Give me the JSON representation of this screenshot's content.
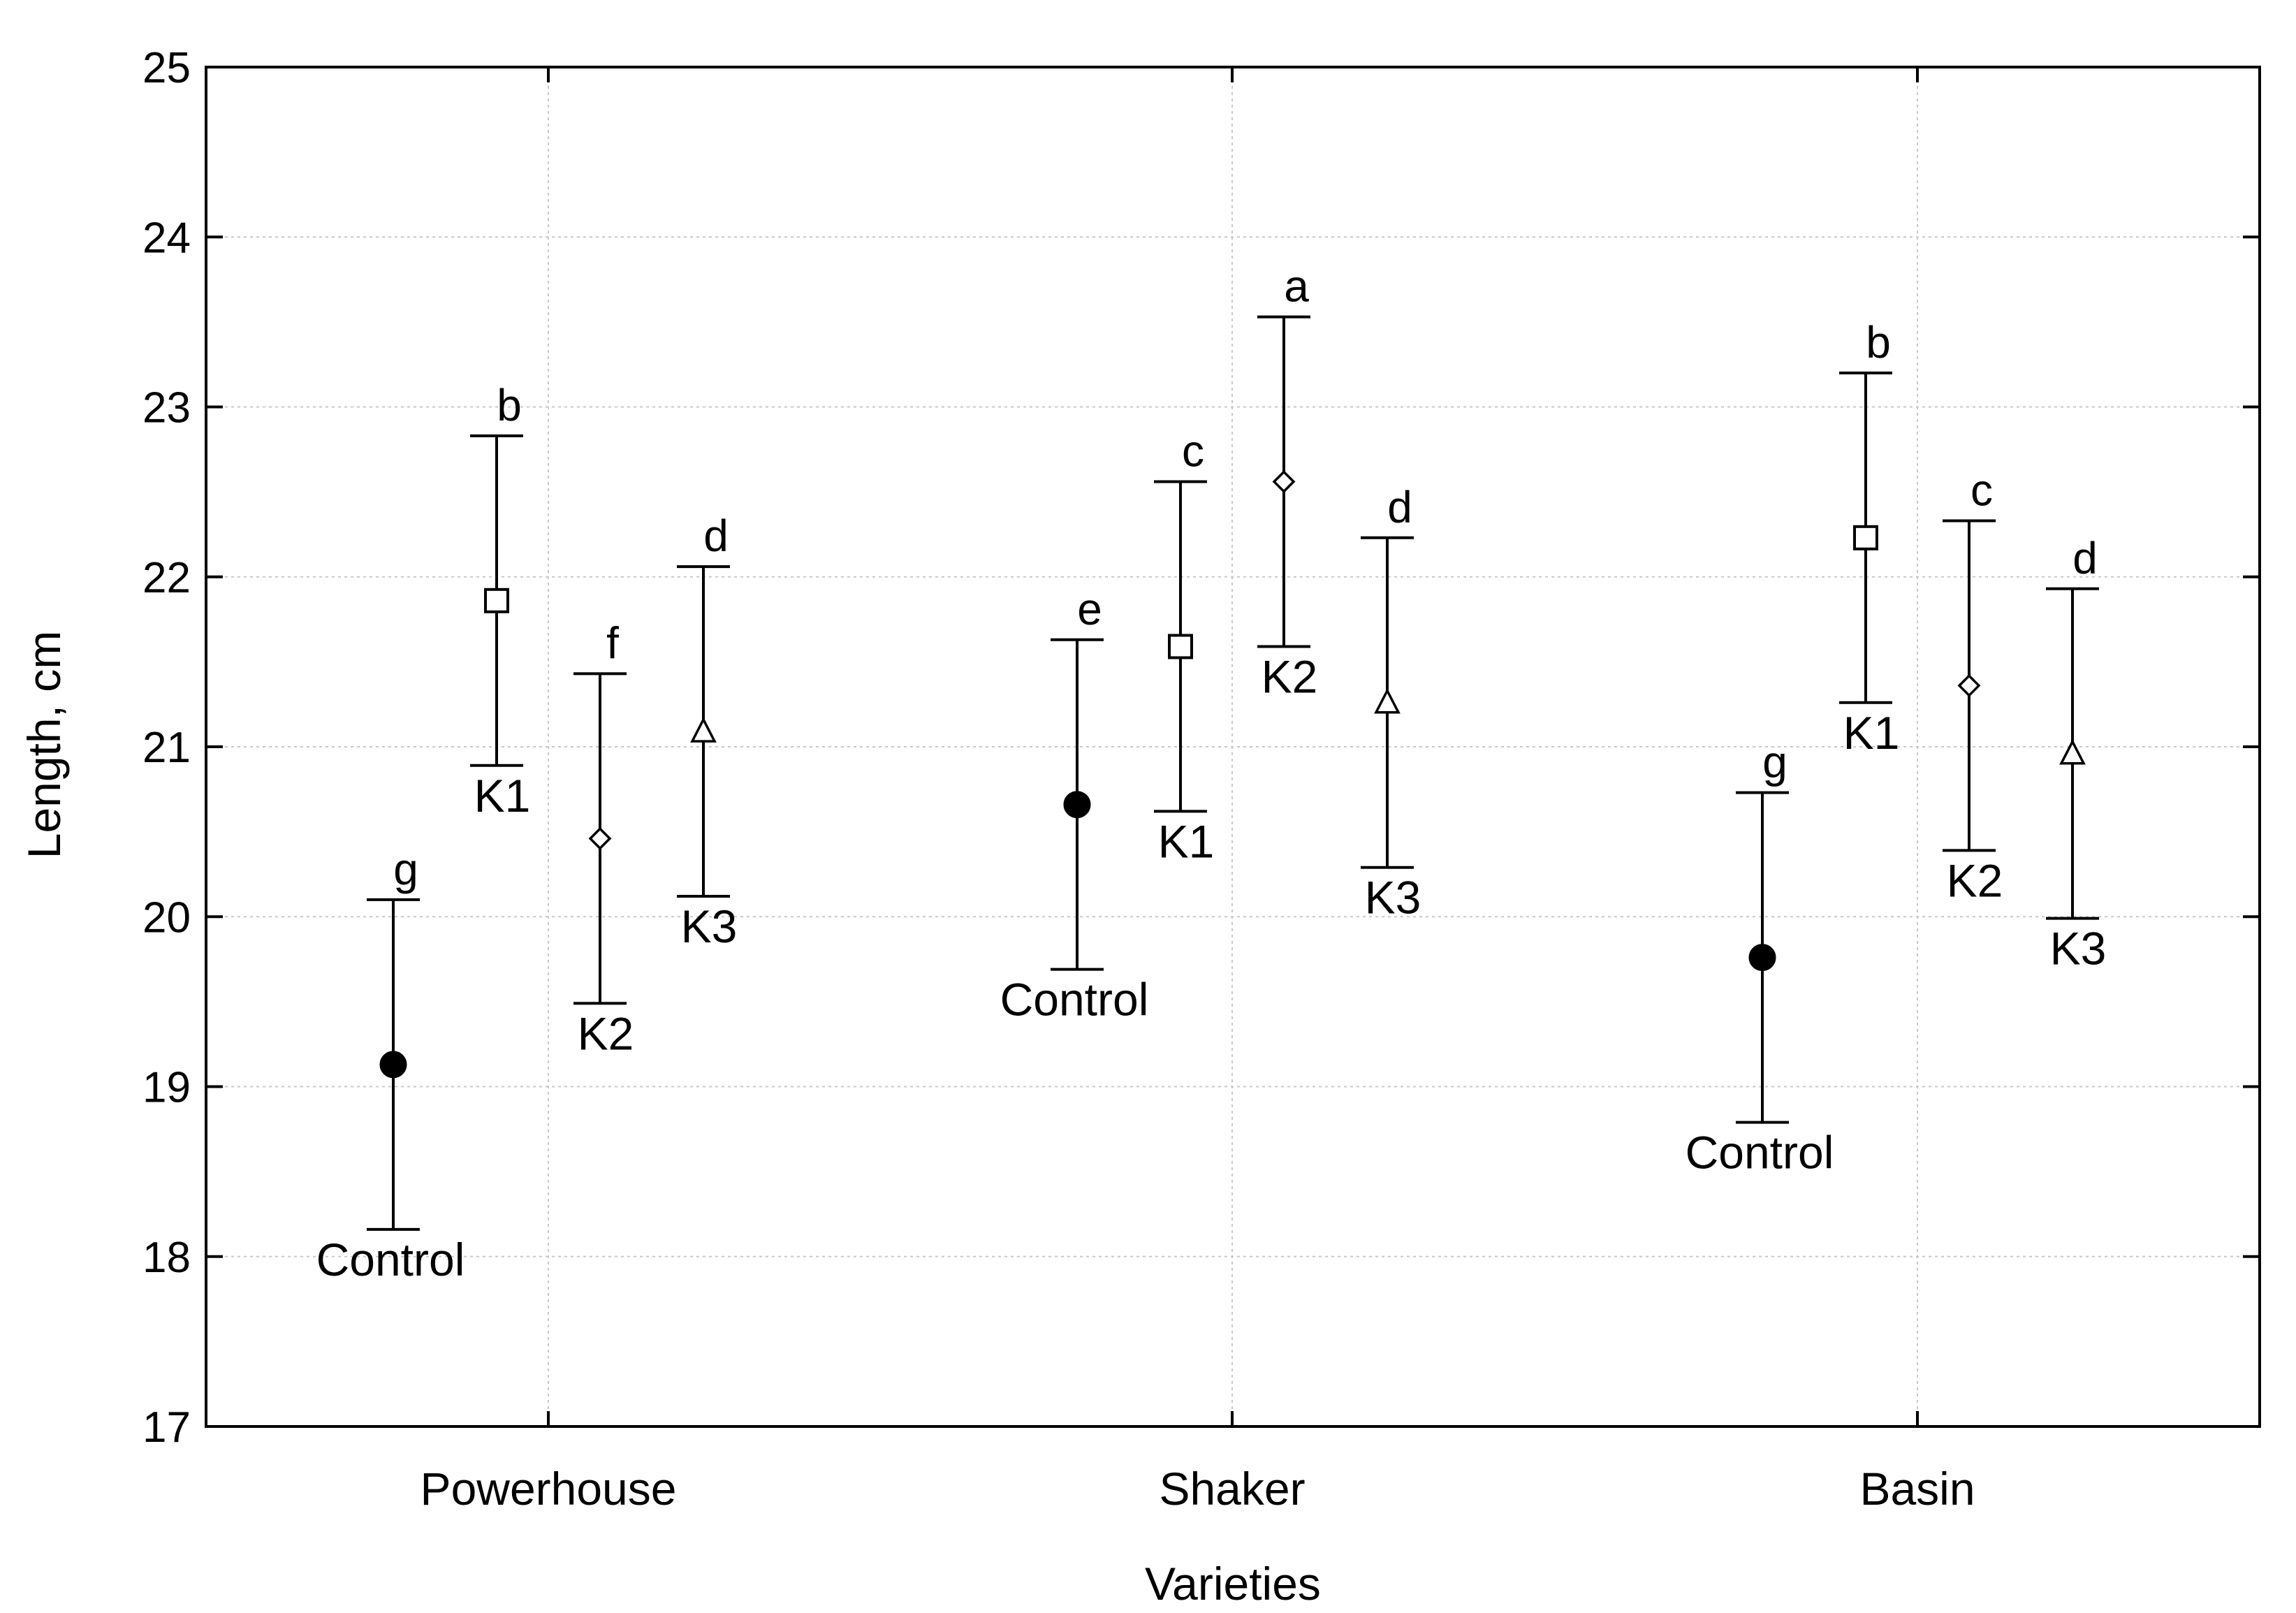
{
  "chart_data": {
    "type": "scatter",
    "title": "",
    "xlabel": "Varieties",
    "ylabel": "Length, cm",
    "ylim": [
      17,
      25
    ],
    "yticks": [
      17,
      18,
      19,
      20,
      21,
      22,
      23,
      24,
      25
    ],
    "grid": true,
    "categories": [
      "Powerhouse",
      "Shaker",
      "Basin"
    ],
    "series": [
      {
        "name": "Control",
        "marker": "filled-circle",
        "values": [
          19.13,
          20.66,
          19.76
        ],
        "lower": [
          18.16,
          19.69,
          18.79
        ],
        "upper": [
          20.1,
          21.63,
          20.73
        ],
        "letters": [
          "g",
          "e",
          "g"
        ]
      },
      {
        "name": "K1",
        "marker": "open-square",
        "values": [
          21.86,
          21.59,
          22.23
        ],
        "lower": [
          20.89,
          20.62,
          21.26
        ],
        "upper": [
          22.83,
          22.56,
          23.2
        ],
        "letters": [
          "b",
          "c",
          "b"
        ]
      },
      {
        "name": "K2",
        "marker": "open-diamond",
        "values": [
          20.46,
          22.56,
          21.36
        ],
        "lower": [
          19.49,
          21.59,
          20.39
        ],
        "upper": [
          21.43,
          23.53,
          22.33
        ],
        "letters": [
          "f",
          "a",
          "c"
        ]
      },
      {
        "name": "K3",
        "marker": "open-triangle",
        "values": [
          21.09,
          21.26,
          20.96
        ],
        "lower": [
          20.12,
          20.29,
          19.99
        ],
        "upper": [
          22.06,
          22.23,
          21.93
        ],
        "letters": [
          "d",
          "d",
          "d"
        ]
      }
    ]
  }
}
